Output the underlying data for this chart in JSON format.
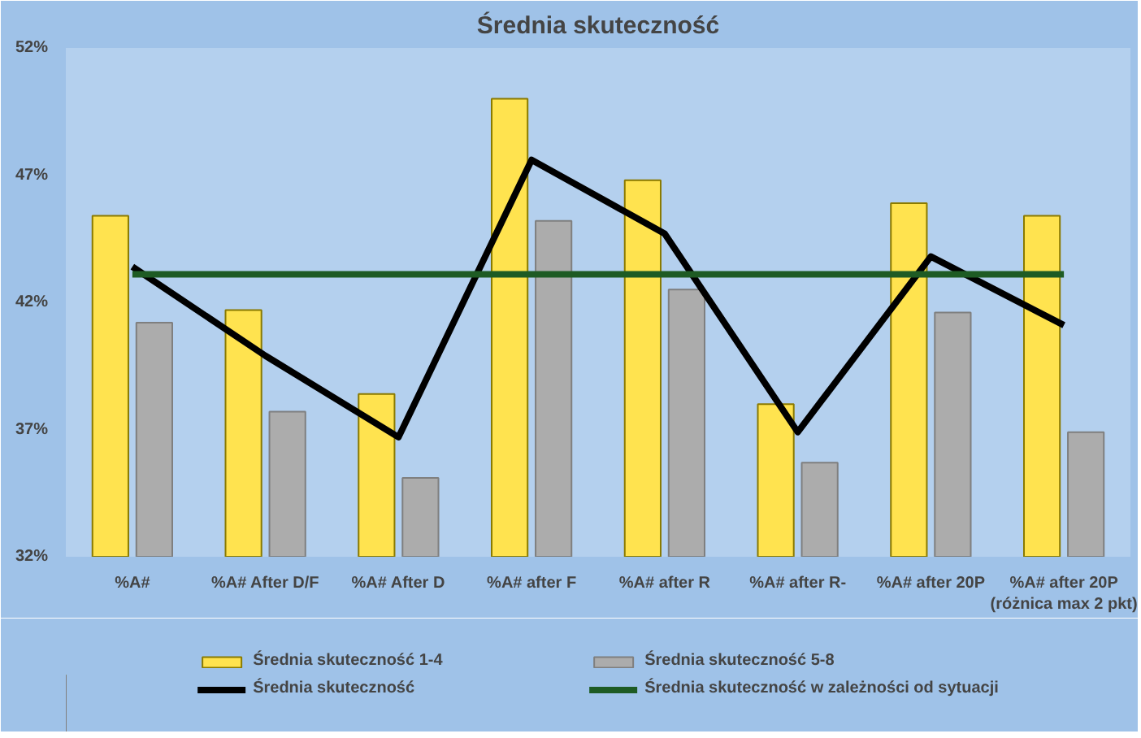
{
  "chart_data": {
    "type": "bar",
    "title": "Średnia skuteczność",
    "categories": [
      "%A#",
      "%A# After D/F",
      "%A# After D",
      "%A# after F",
      "%A# after R",
      "%A# after R-",
      "%A# after 20P",
      "%A# after 20P (różnica max 2 pkt)"
    ],
    "series": [
      {
        "name": "Średnia skuteczność 1-4",
        "color": "#ffe34f",
        "values": [
          45.4,
          41.7,
          38.4,
          50.0,
          46.8,
          38.0,
          45.9,
          45.4
        ]
      },
      {
        "name": "Średnia skuteczność 5-8",
        "color": "#acacac",
        "values": [
          41.2,
          37.7,
          35.1,
          45.2,
          42.5,
          35.7,
          41.6,
          36.9
        ]
      },
      {
        "name": "Średnia skuteczność",
        "type": "line",
        "color": "#000000",
        "values": [
          43.4,
          39.9,
          36.7,
          47.6,
          44.7,
          36.9,
          43.8,
          41.1
        ]
      },
      {
        "name": "Średnia skuteczność w zależności od sytuacji",
        "type": "line",
        "color": "#1e5b24",
        "values": [
          43.1,
          43.1,
          43.1,
          43.1,
          43.1,
          43.1,
          43.1,
          43.1
        ]
      }
    ],
    "ylim": [
      32,
      52
    ],
    "yticks": [
      {
        "value": 32,
        "label": "32%"
      },
      {
        "value": 37,
        "label": "37%"
      },
      {
        "value": 42,
        "label": "42%"
      },
      {
        "value": 47,
        "label": "47%"
      },
      {
        "value": 52,
        "label": "52%"
      }
    ],
    "legend": "bottom"
  }
}
